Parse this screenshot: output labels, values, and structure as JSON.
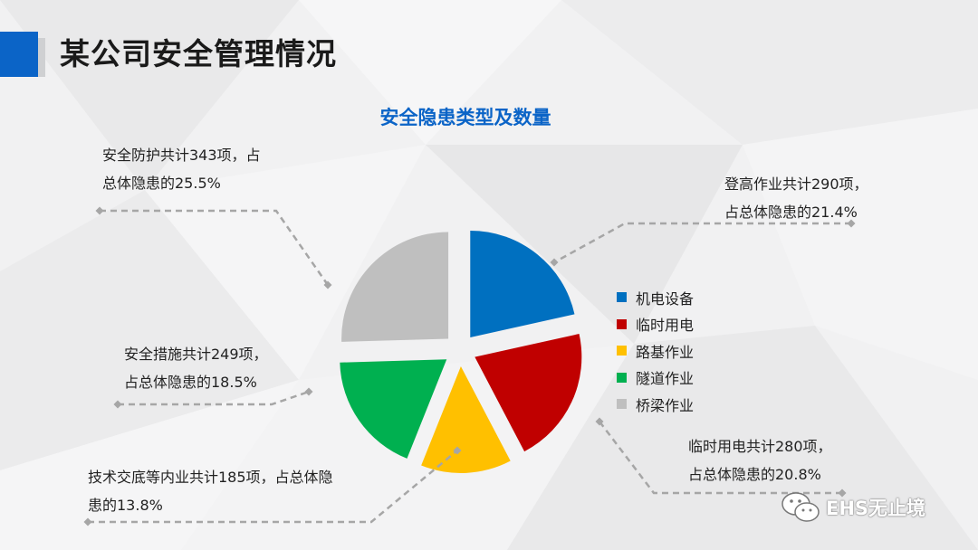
{
  "page": {
    "title": "某公司安全管理情况",
    "accent": "#0b64c7"
  },
  "chart_data": {
    "type": "pie",
    "title": "安全隐患类型及数量",
    "categories": [
      "机电设备",
      "临时用电",
      "路基作业",
      "隧道作业",
      "桥梁作业"
    ],
    "values": [
      290,
      280,
      185,
      249,
      343
    ],
    "percents": [
      "21.4%",
      "20.8%",
      "13.8%",
      "18.5%",
      "25.5%"
    ],
    "colors": [
      "#0070c0",
      "#c00000",
      "#ffc000",
      "#00b050",
      "#bfbfbf"
    ],
    "exploded": true,
    "legend_position": "right",
    "annotations": [
      {
        "lines": [
          "登高作业共计290项，",
          "占总体隐患的21.4%"
        ]
      },
      {
        "lines": [
          "临时用电共计280项，",
          "占总体隐患的20.8%"
        ]
      },
      {
        "lines": [
          "技术交底等内业共计185项，占总体隐",
          "患的13.8%"
        ]
      },
      {
        "lines": [
          "安全措施共计249项，",
          "占总体隐患的18.5%"
        ]
      },
      {
        "lines": [
          "安全防护共计343项，占",
          "总体隐患的25.5%"
        ]
      }
    ]
  },
  "watermark": {
    "text": "EHS无止境",
    "icon": "wechat-icon"
  }
}
